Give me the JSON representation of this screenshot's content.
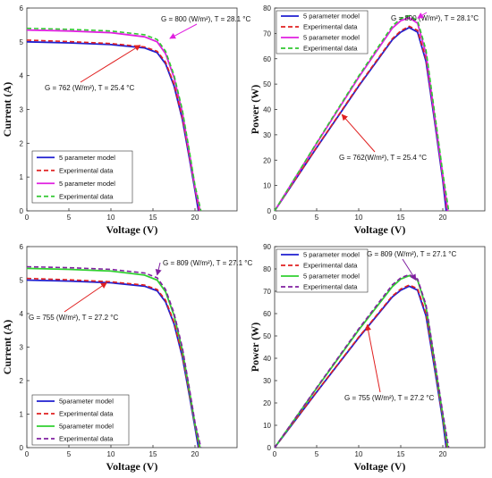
{
  "chart_data": [
    {
      "type": "line",
      "xlabel": "Voltage (V)",
      "ylabel": "Current (A)",
      "xlim": [
        0,
        25
      ],
      "ylim": [
        0,
        6
      ],
      "xticks": [
        0,
        5,
        10,
        15,
        20
      ],
      "yticks": [
        0,
        1,
        2,
        3,
        4,
        5,
        6
      ],
      "grid": false,
      "legend_position": "lower-left",
      "series": [
        {
          "name": "5 parameter model",
          "color": "#1f1fd0",
          "dash": "solid",
          "x": [
            0,
            5,
            10,
            14,
            15.5,
            16.5,
            17.5,
            18.5,
            19.3,
            20,
            20.4
          ],
          "y": [
            5.0,
            4.97,
            4.92,
            4.82,
            4.68,
            4.35,
            3.7,
            2.7,
            1.6,
            0.6,
            0
          ]
        },
        {
          "name": "Experimental data",
          "color": "#e02020",
          "dash": "dashed",
          "x": [
            0,
            5,
            10,
            14,
            15.5,
            16.5,
            17.5,
            18.5,
            19.3,
            20,
            20.5
          ],
          "y": [
            5.05,
            5.01,
            4.95,
            4.85,
            4.72,
            4.4,
            3.75,
            2.75,
            1.65,
            0.65,
            0
          ]
        },
        {
          "name": "5 parameter model",
          "color": "#e020e0",
          "dash": "solid",
          "x": [
            0,
            5,
            10,
            14,
            15.5,
            16.5,
            17.5,
            18.5,
            19.3,
            20,
            20.6
          ],
          "y": [
            5.35,
            5.32,
            5.27,
            5.15,
            5.0,
            4.65,
            3.95,
            2.9,
            1.75,
            0.7,
            0
          ]
        },
        {
          "name": "Experimental data",
          "color": "#30c830",
          "dash": "dashed",
          "x": [
            0,
            5,
            10,
            14,
            15.5,
            16.5,
            17.5,
            18.5,
            19.3,
            20,
            20.7
          ],
          "y": [
            5.4,
            5.37,
            5.32,
            5.21,
            5.07,
            4.72,
            4.02,
            2.98,
            1.82,
            0.75,
            0
          ]
        }
      ],
      "annotations": [
        {
          "text": "G = 800 (W/m²), T = 28.1 °C",
          "arrow_to": [
            17,
            5.1
          ],
          "color": "#e020e0"
        },
        {
          "text": "G = 762 (W/m²), T = 25.4 °C",
          "arrow_to": [
            13.5,
            4.9
          ],
          "color": "#e02020"
        }
      ]
    },
    {
      "type": "line",
      "xlabel": "Voltage (V)",
      "ylabel": "Power (W)",
      "xlim": [
        0,
        25
      ],
      "ylim": [
        0,
        80
      ],
      "xticks": [
        0,
        5,
        10,
        15,
        20
      ],
      "yticks": [
        0,
        10,
        20,
        30,
        40,
        50,
        60,
        70,
        80
      ],
      "grid": false,
      "legend_position": "top-left",
      "series": [
        {
          "name": "5 parameter model",
          "color": "#1f1fd0",
          "dash": "solid",
          "x": [
            0,
            5,
            10,
            14,
            15,
            16,
            17,
            18,
            19,
            20,
            20.4
          ],
          "y": [
            0,
            24.9,
            49.2,
            67.5,
            70.5,
            72.3,
            70.5,
            59,
            36,
            12,
            0
          ]
        },
        {
          "name": "Experimental data",
          "color": "#e02020",
          "dash": "dashed",
          "x": [
            0,
            5,
            10,
            14,
            15,
            16,
            17,
            18,
            19,
            20,
            20.5
          ],
          "y": [
            0,
            25.1,
            49.5,
            67.9,
            71,
            72.8,
            71.2,
            60,
            37,
            13,
            0
          ]
        },
        {
          "name": "5 parameter model",
          "color": "#e020e0",
          "dash": "solid",
          "x": [
            0,
            5,
            10,
            14,
            15,
            16,
            17,
            18,
            19,
            20,
            20.6
          ],
          "y": [
            0,
            26.6,
            52.7,
            72.1,
            75,
            76.2,
            74,
            62,
            38,
            14,
            0
          ]
        },
        {
          "name": "Experimental data",
          "color": "#30c830",
          "dash": "dashed",
          "x": [
            0,
            5,
            10,
            14,
            15,
            16,
            17,
            18,
            19,
            20,
            20.7
          ],
          "y": [
            0,
            26.9,
            53.2,
            72.9,
            75.8,
            77,
            75,
            63.5,
            39.5,
            15,
            0
          ]
        }
      ],
      "annotations": [
        {
          "text": "G = 800 (W/m²), T = 28.1°C",
          "arrow_to": [
            17,
            76
          ],
          "color": "#e020e0"
        },
        {
          "text": "G = 762(W/m²), T = 25.4 °C",
          "arrow_to": [
            8,
            38
          ],
          "color": "#e02020"
        }
      ]
    },
    {
      "type": "line",
      "xlabel": "Voltage (V)",
      "ylabel": "Current (A)",
      "xlim": [
        0,
        25
      ],
      "ylim": [
        0,
        6
      ],
      "xticks": [
        0,
        5,
        10,
        15,
        20
      ],
      "yticks": [
        0,
        1,
        2,
        3,
        4,
        5,
        6
      ],
      "grid": false,
      "legend_position": "lower-left",
      "series": [
        {
          "name": "5parameter model",
          "color": "#1f1fd0",
          "dash": "solid",
          "x": [
            0,
            5,
            10,
            14,
            15.5,
            16.5,
            17.5,
            18.5,
            19.3,
            20,
            20.4
          ],
          "y": [
            5.0,
            4.97,
            4.92,
            4.82,
            4.68,
            4.35,
            3.7,
            2.7,
            1.6,
            0.6,
            0
          ]
        },
        {
          "name": "Experimental data",
          "color": "#e02020",
          "dash": "dashed",
          "x": [
            0,
            5,
            10,
            14,
            15.5,
            16.5,
            17.5,
            18.5,
            19.3,
            20,
            20.5
          ],
          "y": [
            5.05,
            5.01,
            4.95,
            4.85,
            4.72,
            4.4,
            3.75,
            2.75,
            1.65,
            0.65,
            0
          ]
        },
        {
          "name": "5parameter model",
          "color": "#30d030",
          "dash": "solid",
          "x": [
            0,
            5,
            10,
            14,
            15.5,
            16.5,
            17.5,
            18.5,
            19.3,
            20,
            20.6
          ],
          "y": [
            5.35,
            5.32,
            5.27,
            5.15,
            5.0,
            4.65,
            3.95,
            2.9,
            1.75,
            0.7,
            0
          ]
        },
        {
          "name": "Experimental data",
          "color": "#8020a0",
          "dash": "dashed",
          "x": [
            0,
            5,
            10,
            14,
            15.5,
            16.5,
            17.5,
            18.5,
            19.3,
            20,
            20.7
          ],
          "y": [
            5.4,
            5.37,
            5.32,
            5.21,
            5.07,
            4.72,
            4.02,
            2.98,
            1.82,
            0.75,
            0
          ]
        }
      ],
      "annotations": [
        {
          "text": "G = 809 (W/m²), T = 27.1 °C",
          "arrow_to": [
            15.5,
            5.15
          ],
          "color": "#8020a0"
        },
        {
          "text": "G = 755 (W/m²), T = 27.2 °C",
          "arrow_to": [
            9.5,
            4.92
          ],
          "color": "#e02020"
        }
      ]
    },
    {
      "type": "line",
      "xlabel": "Voltage (V)",
      "ylabel": "Power (W)",
      "xlim": [
        0,
        25
      ],
      "ylim": [
        0,
        90
      ],
      "xticks": [
        0,
        5,
        10,
        15,
        20
      ],
      "yticks": [
        0,
        10,
        20,
        30,
        40,
        50,
        60,
        70,
        80,
        90
      ],
      "grid": false,
      "legend_position": "top-left",
      "series": [
        {
          "name": "5 parameter model",
          "color": "#1f1fd0",
          "dash": "solid",
          "x": [
            0,
            5,
            10,
            14,
            15,
            16,
            17,
            18,
            19,
            20,
            20.4
          ],
          "y": [
            0,
            24.9,
            49.2,
            67.5,
            70.5,
            72.3,
            70.5,
            59,
            36,
            12,
            0
          ]
        },
        {
          "name": "Experimental data",
          "color": "#e02020",
          "dash": "dashed",
          "x": [
            0,
            5,
            10,
            14,
            15,
            16,
            17,
            18,
            19,
            20,
            20.5
          ],
          "y": [
            0,
            25.1,
            49.5,
            67.9,
            71,
            72.8,
            71.2,
            60,
            37,
            13,
            0
          ]
        },
        {
          "name": "5 parameter model",
          "color": "#30d030",
          "dash": "solid",
          "x": [
            0,
            5,
            10,
            14,
            15,
            16,
            17,
            18,
            19,
            20,
            20.6
          ],
          "y": [
            0,
            26.6,
            52.7,
            72.1,
            75.5,
            77,
            75,
            63,
            39,
            14.5,
            0
          ]
        },
        {
          "name": "Experimental data",
          "color": "#8020a0",
          "dash": "dashed",
          "x": [
            0,
            5,
            10,
            14,
            15,
            16,
            17,
            18,
            19,
            20,
            20.7
          ],
          "y": [
            0,
            26.9,
            53.2,
            72.9,
            76,
            77.5,
            75.5,
            64,
            40,
            15.5,
            0
          ]
        }
      ],
      "annotations": [
        {
          "text": "G = 809 (W/m²), T = 27.1 °C",
          "arrow_to": [
            16.8,
            75
          ],
          "color": "#8020a0"
        },
        {
          "text": "G = 755 (W/m²), T = 27.2 °C",
          "arrow_to": [
            11,
            55
          ],
          "color": "#e02020"
        }
      ]
    }
  ]
}
